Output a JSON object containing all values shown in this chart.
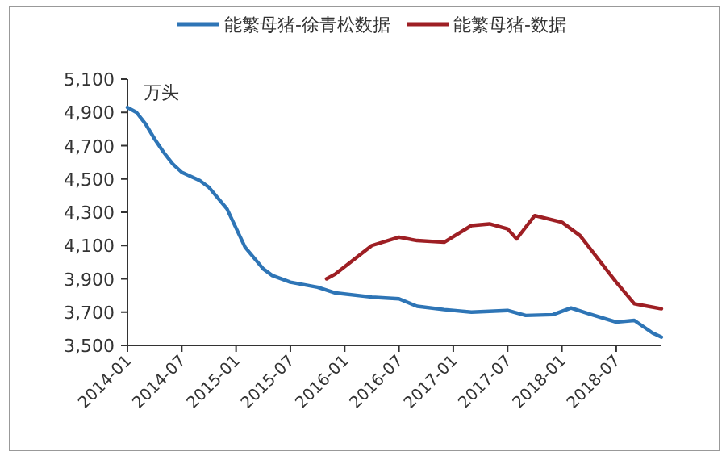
{
  "chart_data": {
    "type": "line",
    "ylabel": "万头",
    "legend": "top",
    "grid": false,
    "line_style": "solid",
    "marker": "none",
    "xlim": [
      "2014-01",
      "2018-12"
    ],
    "xticks": [
      "2014-01",
      "2014-07",
      "2015-01",
      "2015-07",
      "2016-01",
      "2016-07",
      "2017-01",
      "2017-07",
      "2018-01",
      "2018-07"
    ],
    "ylim": [
      3500,
      5100
    ],
    "yticks": [
      {
        "value": 3500,
        "label": "3,500"
      },
      {
        "value": 3700,
        "label": "3,700"
      },
      {
        "value": 3900,
        "label": "3,900"
      },
      {
        "value": 4100,
        "label": "4,100"
      },
      {
        "value": 4300,
        "label": "4,300"
      },
      {
        "value": 4500,
        "label": "4,500"
      },
      {
        "value": 4700,
        "label": "4,700"
      },
      {
        "value": 4900,
        "label": "4,900"
      },
      {
        "value": 5100,
        "label": "5,100"
      }
    ],
    "series": [
      {
        "name": "能繁母猪-徐青松数据",
        "color": "#2e75b6",
        "x": [
          "2014-01",
          "2014-02",
          "2014-03",
          "2014-04",
          "2014-05",
          "2014-06",
          "2014-07",
          "2014-09",
          "2014-10",
          "2014-12",
          "2015-02",
          "2015-04",
          "2015-05",
          "2015-07",
          "2015-10",
          "2015-12",
          "2016-04",
          "2016-07",
          "2016-09",
          "2016-12",
          "2017-03",
          "2017-07",
          "2017-09",
          "2017-12",
          "2018-02",
          "2018-04",
          "2018-07",
          "2018-09",
          "2018-11",
          "2018-12"
        ],
        "values": [
          4930,
          4900,
          4830,
          4740,
          4660,
          4590,
          4540,
          4490,
          4450,
          4320,
          4090,
          3960,
          3920,
          3880,
          3850,
          3815,
          3790,
          3780,
          3735,
          3715,
          3700,
          3710,
          3680,
          3685,
          3725,
          3690,
          3640,
          3650,
          3575,
          3550
        ]
      },
      {
        "name": "能繁母猪-数据",
        "color": "#9e1f24",
        "x": [
          "2015-11",
          "2015-12",
          "2016-04",
          "2016-07",
          "2016-09",
          "2016-12",
          "2017-03",
          "2017-05",
          "2017-07",
          "2017-08",
          "2017-10",
          "2018-01",
          "2018-03",
          "2018-07",
          "2018-09",
          "2018-10",
          "2018-12"
        ],
        "values": [
          3900,
          3930,
          4100,
          4150,
          4130,
          4120,
          4220,
          4230,
          4200,
          4140,
          4280,
          4240,
          4160,
          3880,
          3750,
          3740,
          3720
        ]
      }
    ]
  }
}
